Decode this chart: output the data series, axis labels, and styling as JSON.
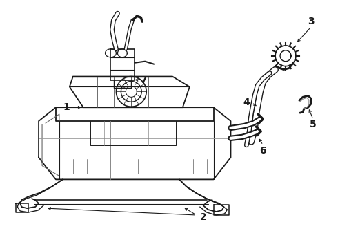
{
  "bg_color": "#ffffff",
  "line_color": "#1a1a1a",
  "figsize": [
    4.9,
    3.6
  ],
  "dpi": 100,
  "label_fontsize": 10
}
